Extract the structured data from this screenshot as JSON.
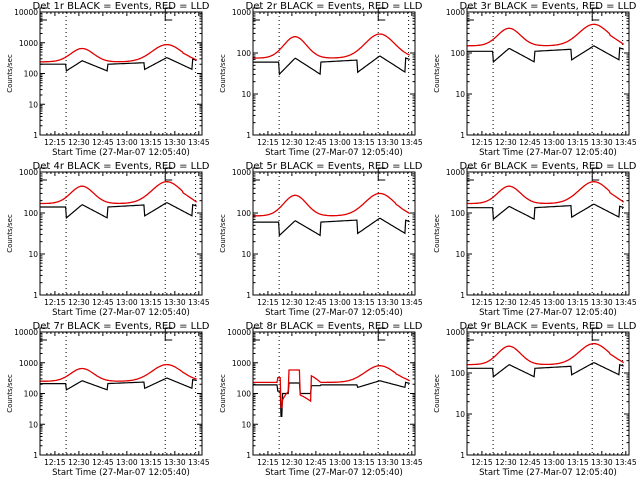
{
  "chart_data": {
    "type": "line",
    "layout": "3x3 grid",
    "common": {
      "xlabel": "Start Time (27-Mar-07 12:05:40)",
      "ylabel": "Counts/sec",
      "x_ticks": [
        "12:15",
        "12:30",
        "12:45",
        "13:00",
        "13:15",
        "13:30",
        "13:45"
      ],
      "x_tick_minutes": [
        15,
        30,
        45,
        60,
        75,
        90,
        105
      ],
      "x_range_minutes": [
        5.67,
        107
      ],
      "y_scale": "log",
      "dotted_vlines_minutes": [
        22,
        84,
        103
      ],
      "e_marker_minutes": [
        5.67,
        84
      ],
      "series_names": [
        "Events",
        "LLD"
      ],
      "series_colors": {
        "Events": "#000000",
        "LLD": "#e00000"
      }
    },
    "panels": [
      {
        "title": "Det 1r BLACK = Events, RED = LLD",
        "ylim": [
          1,
          10000
        ],
        "y_ticks": [
          "1",
          "10",
          "100",
          "1000",
          "10000"
        ],
        "lld": {
          "base": 240,
          "peak1": 650,
          "peak2": 870,
          "end": 250
        },
        "events": {
          "base": 200,
          "peak1": 260,
          "peak2": 330,
          "dip": 120
        }
      },
      {
        "title": "Det 2r BLACK = Events, RED = LLD",
        "ylim": [
          1,
          1000
        ],
        "y_ticks": [
          "1",
          "10",
          "100",
          "1000"
        ],
        "lld": {
          "base": 75,
          "peak1": 250,
          "peak2": 290,
          "end": 85
        },
        "events": {
          "base": 60,
          "peak1": 75,
          "peak2": 85,
          "dip": 30
        }
      },
      {
        "title": "Det 3r BLACK = Events, RED = LLD",
        "ylim": [
          1,
          1000
        ],
        "y_ticks": [
          "1",
          "10",
          "100",
          "1000"
        ],
        "lld": {
          "base": 150,
          "peak1": 400,
          "peak2": 500,
          "end": 150
        },
        "events": {
          "base": 110,
          "peak1": 130,
          "peak2": 150,
          "dip": 60
        }
      },
      {
        "title": "Det 4r BLACK = Events, RED = LLD",
        "ylim": [
          1,
          1000
        ],
        "y_ticks": [
          "1",
          "10",
          "100",
          "1000"
        ],
        "lld": {
          "base": 170,
          "peak1": 450,
          "peak2": 580,
          "end": 170
        },
        "events": {
          "base": 140,
          "peak1": 160,
          "peak2": 180,
          "dip": 75
        }
      },
      {
        "title": "Det 5r BLACK = Events, RED = LLD",
        "ylim": [
          1,
          1000
        ],
        "y_ticks": [
          "1",
          "10",
          "100",
          "1000"
        ],
        "lld": {
          "base": 85,
          "peak1": 270,
          "peak2": 300,
          "end": 90
        },
        "events": {
          "base": 60,
          "peak1": 65,
          "peak2": 75,
          "dip": 28
        }
      },
      {
        "title": "Det 6r BLACK = Events, RED = LLD",
        "ylim": [
          1,
          1000
        ],
        "y_ticks": [
          "1",
          "10",
          "100",
          "1000"
        ],
        "lld": {
          "base": 170,
          "peak1": 450,
          "peak2": 580,
          "end": 170
        },
        "events": {
          "base": 135,
          "peak1": 145,
          "peak2": 165,
          "dip": 70
        }
      },
      {
        "title": "Det 7r BLACK = Events, RED = LLD",
        "ylim": [
          1,
          10000
        ],
        "y_ticks": [
          "1",
          "10",
          "100",
          "1000",
          "10000"
        ],
        "lld": {
          "base": 250,
          "peak1": 650,
          "peak2": 870,
          "end": 270
        },
        "events": {
          "base": 210,
          "peak1": 260,
          "peak2": 320,
          "dip": 130
        }
      },
      {
        "title": "Det 8r BLACK = Events, RED = LLD",
        "ylim": [
          1,
          10000
        ],
        "y_ticks": [
          "1",
          "10",
          "100",
          "1000",
          "10000"
        ],
        "lld": {
          "base": 230,
          "peak1": 580,
          "peak2": 800,
          "end": 240,
          "anomaly": true
        },
        "events": {
          "base": 190,
          "peak1": 220,
          "peak2": 260,
          "dip": 20,
          "anomaly": true
        }
      },
      {
        "title": "Det 9r BLACK = Events, RED = LLD",
        "ylim": [
          1,
          1000
        ],
        "y_ticks": [
          "1",
          "10",
          "100",
          "1000"
        ],
        "lld": {
          "base": 160,
          "peak1": 450,
          "peak2": 520,
          "end": 165
        },
        "events": {
          "base": 130,
          "peak1": 160,
          "peak2": 180,
          "dip": 80
        }
      }
    ]
  }
}
